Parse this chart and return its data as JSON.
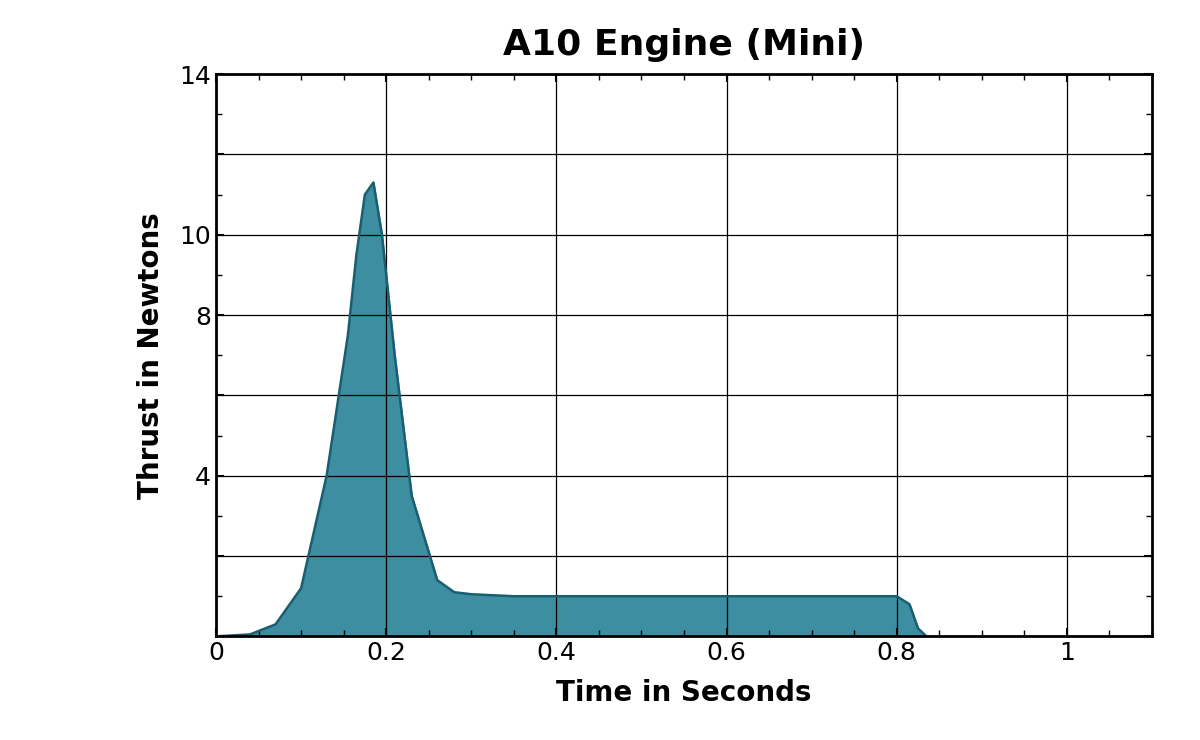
{
  "title": "A10 Engine (Mini)",
  "xlabel": "Time in Seconds",
  "ylabel": "Thrust in Newtons",
  "xlim": [
    0,
    1.1
  ],
  "ylim": [
    0,
    14
  ],
  "xticks": [
    0,
    0.2,
    0.4,
    0.6,
    0.8,
    1.0
  ],
  "yticks": [
    0,
    2,
    4,
    6,
    8,
    10,
    12,
    14
  ],
  "ytick_labels": [
    "",
    "",
    "4",
    "",
    "8",
    "10",
    "",
    "14"
  ],
  "fill_color": "#3d8ea0",
  "line_color": "#1a5f70",
  "background_color": "#ffffff",
  "thrust_curve": {
    "time": [
      0.0,
      0.04,
      0.07,
      0.1,
      0.13,
      0.155,
      0.165,
      0.175,
      0.185,
      0.195,
      0.21,
      0.23,
      0.26,
      0.28,
      0.3,
      0.35,
      0.4,
      0.5,
      0.6,
      0.7,
      0.8,
      0.815,
      0.825,
      0.835
    ],
    "thrust": [
      0.0,
      0.05,
      0.3,
      1.2,
      4.0,
      7.5,
      9.5,
      11.0,
      11.3,
      10.0,
      7.0,
      3.5,
      1.4,
      1.1,
      1.05,
      1.0,
      1.0,
      1.0,
      1.0,
      1.0,
      1.0,
      0.8,
      0.2,
      0.0
    ]
  }
}
